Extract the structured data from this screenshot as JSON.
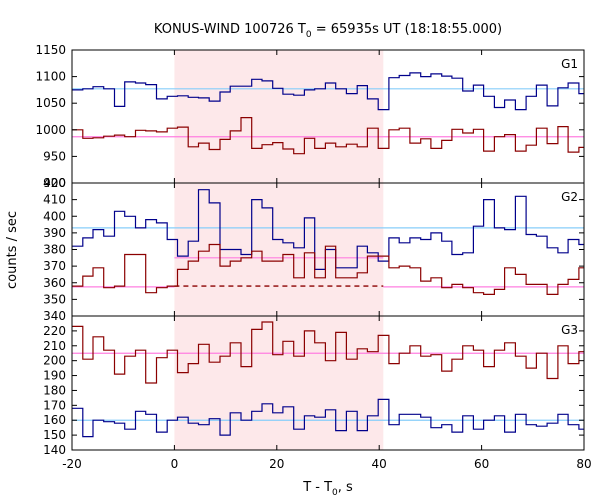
{
  "chart_data": {
    "type": "line",
    "title_main": "KONUS-WIND 100726 T",
    "title_sub": "0",
    "title_rest": " = 65935s UT (18:18:55.000)",
    "xlabel_main": "T - T",
    "xlabel_sub": "0",
    "xlabel_rest": ", s",
    "ylabel": "counts / sec",
    "xlim": [
      -20,
      80
    ],
    "x_ticks": [
      -20,
      0,
      20,
      40,
      60,
      80
    ],
    "highlight_interval": [
      0,
      40.8
    ],
    "colors": {
      "red": "#8b0000",
      "blue": "#00008b",
      "pink": "#ff7fe0",
      "cyan": "#87cefa",
      "shade": "#fde8ea"
    },
    "panels": [
      {
        "label": "G1",
        "ylim": [
          900,
          1150
        ],
        "y_ticks": [
          900,
          950,
          1000,
          1050,
          1100,
          1150
        ],
        "background_levels": [
          {
            "color": "cyan",
            "value": 1077
          },
          {
            "color": "pink",
            "value": 987
          }
        ],
        "series": [
          {
            "color": "blue",
            "x": [
              -20,
              -17.9,
              -15.9,
              -13.8,
              -11.7,
              -9.7,
              -7.6,
              -5.6,
              -3.5,
              -1.4,
              0.6,
              2.7,
              4.7,
              6.8,
              8.9,
              10.9,
              13,
              15.1,
              17.1,
              19.2,
              21.2,
              23.3,
              25.4,
              27.4,
              29.5,
              31.5,
              33.6,
              35.7,
              37.7,
              39.8,
              41.9,
              43.9,
              46,
              48.1,
              50.1,
              52.2,
              54.2,
              56.3,
              58.4,
              60.4,
              62.5,
              64.5,
              66.6,
              68.7,
              70.7,
              72.8,
              74.9,
              76.9,
              79
            ],
            "y": [
              1075,
              1077,
              1081,
              1077,
              1044,
              1090,
              1088,
              1085,
              1058,
              1063,
              1064,
              1061,
              1060,
              1054,
              1071,
              1082,
              1082,
              1095,
              1092,
              1078,
              1067,
              1065,
              1075,
              1077,
              1088,
              1077,
              1068,
              1083,
              1058,
              1038,
              1098,
              1102,
              1107,
              1100,
              1105,
              1101,
              1097,
              1073,
              1084,
              1063,
              1042,
              1056,
              1038,
              1063,
              1084,
              1045,
              1079,
              1088,
              1068
            ]
          },
          {
            "color": "red",
            "x": [
              -20,
              -17.9,
              -15.9,
              -13.8,
              -11.7,
              -9.7,
              -7.6,
              -5.6,
              -3.5,
              -1.4,
              0.6,
              2.7,
              4.7,
              6.8,
              8.9,
              10.9,
              13,
              15.1,
              17.1,
              19.2,
              21.2,
              23.3,
              25.4,
              27.4,
              29.5,
              31.5,
              33.6,
              35.7,
              37.7,
              39.8,
              41.9,
              43.9,
              46,
              48.1,
              50.1,
              52.2,
              54.2,
              56.3,
              58.4,
              60.4,
              62.5,
              64.5,
              66.6,
              68.7,
              70.7,
              72.8,
              74.9,
              76.9,
              79
            ],
            "y": [
              1000,
              984,
              985,
              988,
              990,
              987,
              999,
              998,
              996,
              1003,
              1005,
              968,
              975,
              963,
              982,
              998,
              1023,
              965,
              972,
              976,
              964,
              955,
              984,
              965,
              975,
              968,
              973,
              968,
              1003,
              965,
              1000,
              1003,
              975,
              983,
              965,
              980,
              1001,
              994,
              1001,
              960,
              987,
              991,
              960,
              971,
              1003,
              974,
              1006,
              958,
              967
            ]
          }
        ]
      },
      {
        "label": "G2",
        "ylim": [
          340,
          420
        ],
        "y_ticks": [
          340,
          350,
          360,
          370,
          380,
          390,
          400,
          410,
          420
        ],
        "background_levels": [
          {
            "color": "cyan",
            "value": 393
          },
          {
            "color": "pink",
            "value": 375,
            "x_range": [
              0,
              40.8
            ]
          },
          {
            "color": "pink",
            "value": 357.5,
            "x_range": [
              -20,
              0
            ]
          },
          {
            "color": "pink",
            "value": 357.5,
            "x_range": [
              40.8,
              80
            ]
          }
        ],
        "source_level": {
          "color": "red",
          "value": 358,
          "x_range": [
            0,
            40.8
          ],
          "style": "dashed"
        },
        "series": [
          {
            "color": "blue",
            "x": [
              -20,
              -17.9,
              -15.9,
              -13.8,
              -11.7,
              -9.7,
              -7.6,
              -5.6,
              -3.5,
              -1.4,
              0.6,
              2.7,
              4.7,
              6.8,
              8.9,
              10.9,
              13,
              15.1,
              17.1,
              19.2,
              21.2,
              23.3,
              25.4,
              27.4,
              29.5,
              31.5,
              33.6,
              35.7,
              37.7,
              39.8,
              41.9,
              43.9,
              46,
              48.1,
              50.1,
              52.2,
              54.2,
              56.3,
              58.4,
              60.4,
              62.5,
              64.5,
              66.6,
              68.7,
              70.7,
              72.8,
              74.9,
              76.9,
              79
            ],
            "y": [
              382,
              387,
              392,
              388,
              403,
              400,
              393,
              398,
              396,
              386,
              376,
              385,
              416,
              408,
              380,
              380,
              377,
              410,
              405,
              386,
              384,
              381,
              399,
              368,
              380,
              369,
              369,
              382,
              378,
              373,
              387,
              384,
              387,
              386,
              390,
              385,
              377,
              378,
              394,
              410,
              393,
              392,
              412,
              389,
              388,
              381,
              378,
              386,
              383
            ]
          },
          {
            "color": "red",
            "x": [
              -20,
              -17.9,
              -15.9,
              -13.8,
              -11.7,
              -9.7,
              -7.6,
              -5.6,
              -3.5,
              -1.4,
              0.6,
              2.7,
              4.7,
              6.8,
              8.9,
              10.9,
              13,
              15.1,
              17.1,
              19.2,
              21.2,
              23.3,
              25.4,
              27.4,
              29.5,
              31.5,
              33.6,
              35.7,
              37.7,
              39.8,
              41.9,
              43.9,
              46,
              48.1,
              50.1,
              52.2,
              54.2,
              56.3,
              58.4,
              60.4,
              62.5,
              64.5,
              66.6,
              68.7,
              70.7,
              72.8,
              74.9,
              76.9,
              79
            ],
            "y": [
              358,
              364,
              369,
              357,
              358,
              377,
              377,
              354,
              357,
              358,
              368,
              373,
              379,
              383,
              370,
              373,
              375,
              379,
              373,
              373,
              377,
              363,
              378,
              363,
              382,
              363,
              363,
              366,
              376,
              376,
              369,
              370,
              369,
              361,
              363,
              357,
              359,
              357,
              354,
              353,
              356,
              369,
              365,
              359,
              359,
              353,
              359,
              362,
              369
            ]
          }
        ]
      },
      {
        "label": "G3",
        "ylim": [
          140,
          230
        ],
        "y_ticks": [
          140,
          150,
          160,
          170,
          180,
          190,
          200,
          210,
          220
        ],
        "background_levels": [
          {
            "color": "pink",
            "value": 205
          },
          {
            "color": "cyan",
            "value": 160
          }
        ],
        "series": [
          {
            "color": "red",
            "x": [
              -20,
              -17.9,
              -15.9,
              -13.8,
              -11.7,
              -9.7,
              -7.6,
              -5.6,
              -3.5,
              -1.4,
              0.6,
              2.7,
              4.7,
              6.8,
              8.9,
              10.9,
              13,
              15.1,
              17.1,
              19.2,
              21.2,
              23.3,
              25.4,
              27.4,
              29.5,
              31.5,
              33.6,
              35.7,
              37.7,
              39.8,
              41.9,
              43.9,
              46,
              48.1,
              50.1,
              52.2,
              54.2,
              56.3,
              58.4,
              60.4,
              62.5,
              64.5,
              66.6,
              68.7,
              70.7,
              72.8,
              74.9,
              76.9,
              79
            ],
            "y": [
              223,
              201,
              216,
              207,
              191,
              203,
              207,
              185,
              202,
              207,
              192,
              198,
              211,
              199,
              203,
              212,
              196,
              221,
              226,
              204,
              213,
              203,
              220,
              212,
              200,
              219,
              201,
              208,
              206,
              217,
              198,
              205,
              210,
              203,
              204,
              193,
              201,
              210,
              207,
              196,
              207,
              212,
              203,
              195,
              205,
              188,
              210,
              198,
              206
            ]
          },
          {
            "color": "blue",
            "x": [
              -20,
              -17.9,
              -15.9,
              -13.8,
              -11.7,
              -9.7,
              -7.6,
              -5.6,
              -3.5,
              -1.4,
              0.6,
              2.7,
              4.7,
              6.8,
              8.9,
              10.9,
              13,
              15.1,
              17.1,
              19.2,
              21.2,
              23.3,
              25.4,
              27.4,
              29.5,
              31.5,
              33.6,
              35.7,
              37.7,
              39.8,
              41.9,
              43.9,
              46,
              48.1,
              50.1,
              52.2,
              54.2,
              56.3,
              58.4,
              60.4,
              62.5,
              64.5,
              66.6,
              68.7,
              70.7,
              72.8,
              74.9,
              76.9,
              79
            ],
            "y": [
              168,
              149,
              160,
              159,
              158,
              154,
              166,
              164,
              152,
              160,
              162,
              158,
              157,
              161,
              150,
              165,
              160,
              166,
              171,
              165,
              169,
              154,
              163,
              162,
              167,
              153,
              166,
              153,
              163,
              174,
              157,
              164,
              164,
              162,
              155,
              157,
              152,
              163,
              154,
              160,
              163,
              152,
              164,
              157,
              156,
              158,
              164,
              157,
              154
            ]
          }
        ]
      }
    ]
  }
}
